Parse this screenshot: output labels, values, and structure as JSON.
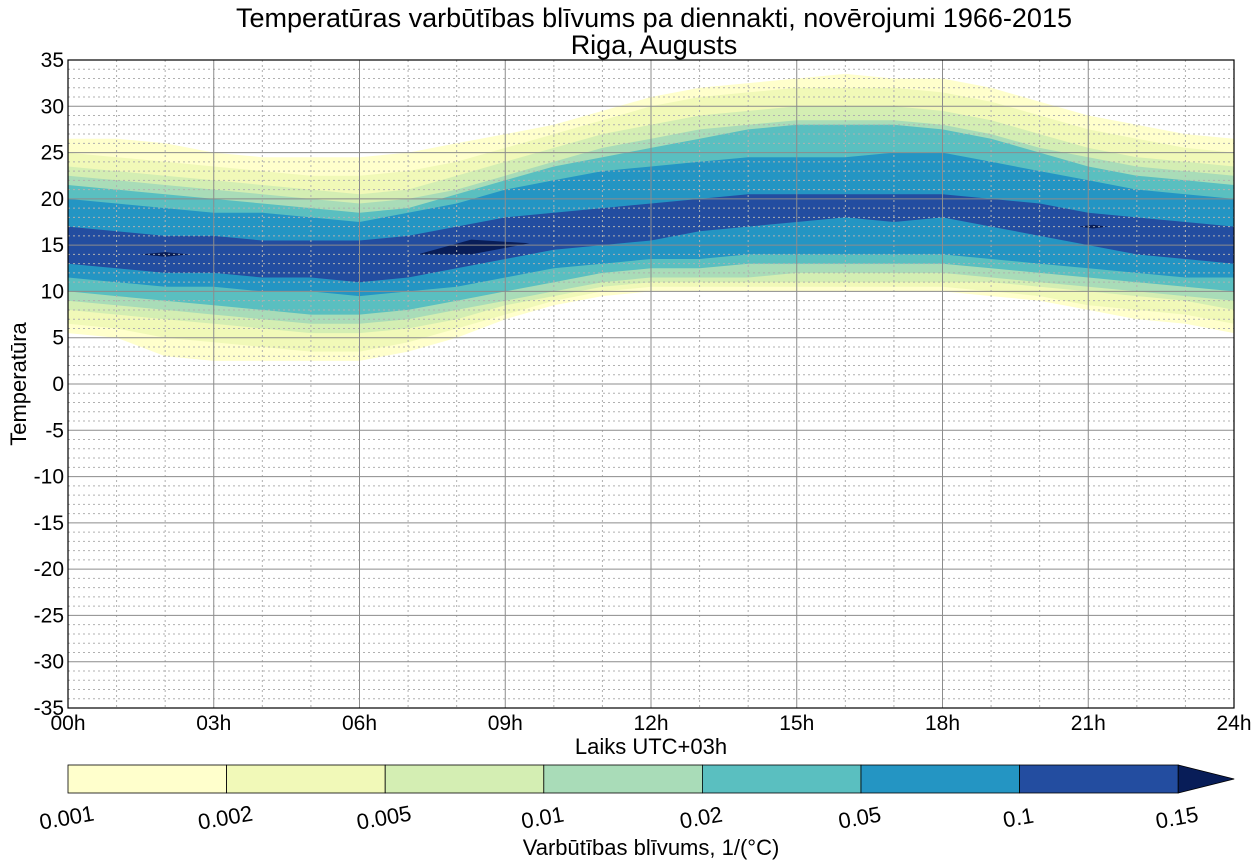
{
  "chart_data": {
    "type": "contourf",
    "title": "Temperatūras varbūtības blīvums pa diennakti, novērojumi 1966-2015",
    "subtitle": "Riga, Augusts",
    "xlabel": "Laiks UTC+03h",
    "ylabel": "Temperatūra",
    "xlim": [
      0,
      24
    ],
    "ylim": [
      -35,
      35
    ],
    "xticks": [
      0,
      3,
      6,
      9,
      12,
      15,
      18,
      21,
      24
    ],
    "xtick_labels": [
      "00h",
      "03h",
      "06h",
      "09h",
      "12h",
      "15h",
      "18h",
      "21h",
      "24h"
    ],
    "yticks": [
      35,
      30,
      25,
      20,
      15,
      10,
      5,
      0,
      -5,
      -10,
      -15,
      -20,
      -25,
      -30,
      -35
    ],
    "ytick_labels": [
      "35",
      "30",
      "25",
      "20",
      "15",
      "10",
      "5",
      "0",
      "-5",
      "-10",
      "-15",
      "-20",
      "-25",
      "-30",
      "-35"
    ],
    "grid": true,
    "colorbar": {
      "label": "Varbūtības blīvums, 1/($^\\circ$C)",
      "levels": [
        0.001,
        0.002,
        0.005,
        0.01,
        0.02,
        0.05,
        0.1,
        0.15
      ],
      "level_labels": [
        "0.001",
        "0.002",
        "0.005",
        "0.01",
        "0.02",
        "0.05",
        "0.1",
        "0.15"
      ],
      "colors": [
        "#ffffcc",
        "#f1f9b8",
        "#d4eeb3",
        "#a9dcb8",
        "#5abfc0",
        "#2495c3",
        "#234da0",
        "#081d58"
      ],
      "extend": "max"
    },
    "hours": [
      0,
      1,
      2,
      3,
      4,
      5,
      6,
      7,
      8,
      9,
      10,
      11,
      12,
      13,
      14,
      15,
      16,
      17,
      18,
      19,
      20,
      21,
      22,
      23,
      24
    ],
    "bands": [
      {
        "level": 0.001,
        "upper": [
          26.5,
          26.5,
          26.0,
          25.0,
          24.5,
          24.5,
          24.5,
          25.0,
          26.0,
          27.0,
          28.0,
          29.5,
          31.0,
          32.0,
          32.5,
          33.0,
          33.5,
          33.0,
          33.0,
          32.0,
          30.5,
          29.0,
          28.0,
          27.0,
          26.5
        ],
        "lower": [
          5.5,
          5.0,
          3.0,
          2.5,
          2.5,
          2.5,
          2.5,
          3.5,
          5.0,
          7.0,
          8.5,
          9.5,
          10.0,
          10.0,
          10.0,
          10.0,
          10.0,
          10.0,
          10.0,
          9.5,
          9.0,
          8.0,
          7.0,
          6.5,
          5.5
        ]
      },
      {
        "level": 0.002,
        "upper": [
          25.0,
          24.5,
          24.0,
          23.5,
          23.0,
          22.5,
          22.5,
          23.0,
          24.0,
          25.5,
          27.0,
          28.5,
          30.0,
          31.0,
          31.5,
          32.0,
          32.0,
          32.0,
          31.5,
          30.5,
          29.0,
          27.5,
          26.5,
          25.5,
          25.0
        ],
        "lower": [
          6.5,
          6.0,
          5.0,
          4.5,
          4.0,
          3.5,
          3.5,
          4.5,
          6.0,
          7.5,
          9.0,
          10.0,
          10.5,
          10.5,
          10.5,
          10.5,
          10.5,
          10.5,
          10.5,
          10.0,
          9.5,
          8.5,
          8.0,
          7.5,
          6.5
        ]
      },
      {
        "level": 0.005,
        "upper": [
          23.5,
          23.0,
          22.5,
          22.0,
          21.5,
          21.0,
          20.5,
          21.0,
          22.5,
          24.0,
          25.5,
          27.0,
          28.0,
          29.0,
          29.5,
          30.0,
          30.0,
          30.0,
          29.5,
          28.5,
          27.0,
          25.5,
          24.5,
          24.0,
          23.5
        ],
        "lower": [
          8.0,
          7.5,
          7.0,
          6.5,
          6.0,
          5.5,
          5.5,
          6.0,
          7.0,
          8.5,
          9.5,
          10.5,
          11.0,
          11.0,
          11.0,
          11.0,
          11.0,
          11.0,
          11.0,
          11.0,
          10.5,
          10.0,
          9.5,
          9.0,
          8.0
        ]
      },
      {
        "level": 0.01,
        "upper": [
          22.5,
          22.0,
          21.5,
          21.0,
          20.5,
          20.0,
          19.5,
          20.0,
          21.0,
          22.5,
          24.0,
          25.5,
          26.5,
          27.5,
          28.0,
          28.5,
          28.5,
          28.5,
          28.0,
          27.0,
          25.5,
          24.5,
          23.5,
          23.0,
          22.5
        ],
        "lower": [
          9.0,
          8.5,
          8.0,
          7.5,
          7.0,
          6.5,
          6.5,
          7.0,
          8.0,
          9.0,
          10.0,
          11.0,
          11.5,
          11.5,
          11.5,
          12.0,
          12.0,
          12.0,
          12.0,
          11.5,
          11.0,
          10.5,
          10.0,
          9.5,
          9.0
        ]
      },
      {
        "level": 0.02,
        "upper": [
          21.5,
          21.0,
          20.5,
          20.0,
          19.5,
          19.0,
          18.5,
          19.0,
          20.5,
          22.0,
          23.5,
          24.5,
          25.5,
          26.5,
          27.5,
          28.0,
          28.0,
          28.0,
          27.5,
          26.5,
          25.0,
          23.5,
          22.5,
          22.0,
          21.5
        ],
        "lower": [
          10.0,
          9.5,
          9.0,
          8.5,
          8.0,
          7.5,
          7.5,
          8.0,
          9.0,
          10.0,
          11.0,
          12.0,
          12.5,
          12.5,
          13.0,
          13.0,
          13.0,
          13.0,
          13.0,
          12.5,
          12.0,
          11.5,
          11.0,
          10.5,
          10.0
        ]
      },
      {
        "level": 0.05,
        "upper": [
          20.0,
          19.5,
          19.0,
          18.5,
          18.5,
          18.0,
          17.5,
          18.5,
          19.5,
          21.0,
          22.0,
          23.0,
          23.5,
          24.0,
          24.5,
          24.5,
          24.5,
          25.0,
          25.0,
          24.0,
          23.0,
          22.0,
          21.0,
          20.5,
          20.0
        ],
        "lower": [
          11.5,
          11.0,
          10.5,
          10.5,
          10.0,
          10.0,
          9.5,
          10.0,
          10.5,
          11.5,
          12.5,
          13.0,
          13.5,
          13.5,
          14.0,
          14.0,
          14.0,
          14.0,
          14.0,
          13.5,
          13.0,
          12.5,
          12.0,
          11.5,
          11.5
        ]
      },
      {
        "level": 0.1,
        "upper": [
          17.0,
          16.5,
          16.0,
          16.0,
          15.5,
          15.5,
          15.5,
          16.0,
          17.0,
          18.0,
          18.5,
          19.0,
          19.5,
          20.0,
          20.5,
          20.5,
          20.5,
          20.5,
          20.5,
          20.0,
          19.5,
          18.5,
          18.0,
          17.5,
          17.0
        ],
        "lower": [
          13.0,
          12.5,
          12.0,
          12.0,
          11.5,
          11.5,
          11.0,
          11.5,
          12.5,
          13.5,
          14.5,
          15.0,
          15.5,
          16.5,
          17.0,
          17.5,
          18.0,
          17.5,
          18.0,
          17.0,
          16.0,
          15.0,
          14.0,
          13.5,
          13.0
        ]
      }
    ],
    "peaks": [
      {
        "level": 0.15,
        "x": [
          1.5,
          2.0,
          2.5
        ],
        "y": [
          14.0,
          14.0,
          14.0
        ],
        "half_width": 0.25
      },
      {
        "level": 0.15,
        "x": [
          7.2,
          8.3,
          9.5
        ],
        "y": [
          14.0,
          14.8,
          15.2
        ],
        "half_width": 0.8
      },
      {
        "level": 0.15,
        "x": [
          20.8,
          21.1,
          21.4
        ],
        "y": [
          17.0,
          17.0,
          17.0
        ],
        "half_width": 0.2
      }
    ]
  }
}
